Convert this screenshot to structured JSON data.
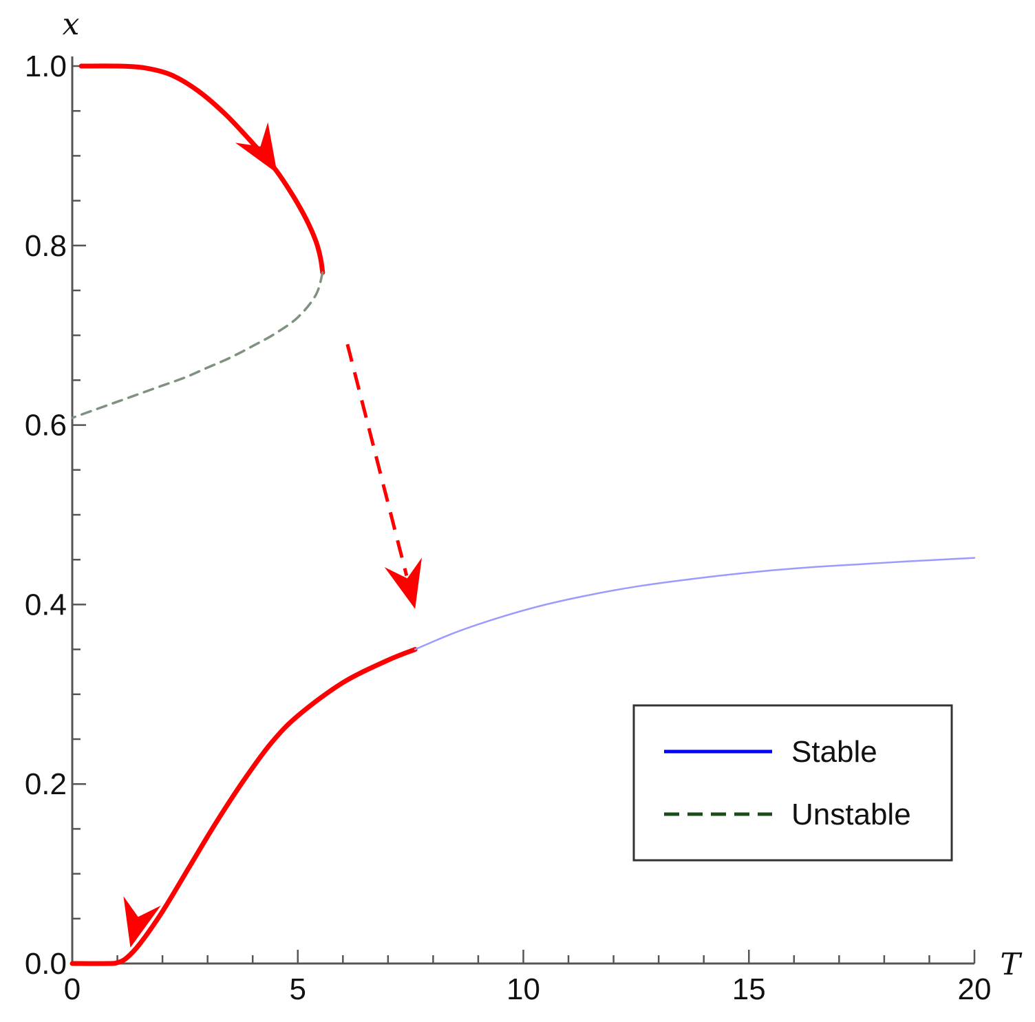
{
  "chart_data": {
    "type": "line",
    "title": "",
    "xlabel": "T",
    "ylabel": "x",
    "xlim": [
      0,
      20
    ],
    "ylim": [
      0,
      1.0
    ],
    "grid": false,
    "x_ticks": [
      0,
      5,
      10,
      15,
      20
    ],
    "x_tick_labels": [
      "0",
      "5",
      "10",
      "15",
      "20"
    ],
    "y_ticks": [
      0.0,
      0.2,
      0.4,
      0.6,
      0.8,
      1.0
    ],
    "y_tick_labels": [
      "0.0",
      "0.2",
      "0.4",
      "0.6",
      "0.8",
      "1.0"
    ],
    "x_minor_step": 1,
    "y_minor_step": 0.05,
    "legend": {
      "position": "bottom-right",
      "entries": [
        {
          "label": "Stable",
          "color": "#0000ff",
          "style": "solid"
        },
        {
          "label": "Unstable",
          "color": "#1b4d1b",
          "style": "dashed"
        }
      ]
    },
    "series": [
      {
        "key": "upper-stable",
        "style": "solid",
        "color": "#ff0000",
        "x": [
          0.2,
          1.0,
          1.6,
          2.2,
          2.8,
          3.4,
          4.0,
          4.5,
          4.9,
          5.2,
          5.4,
          5.5,
          5.55
        ],
        "y": [
          1.0,
          1.0,
          0.998,
          0.99,
          0.972,
          0.946,
          0.914,
          0.885,
          0.855,
          0.828,
          0.805,
          0.787,
          0.77
        ]
      },
      {
        "key": "unstable",
        "style": "dashed",
        "color": "#7f917f",
        "x": [
          5.55,
          5.4,
          5.0,
          4.5,
          4.0,
          3.5,
          3.0,
          2.5,
          2.0,
          1.5,
          1.0,
          0.5,
          0.0
        ],
        "y": [
          0.77,
          0.745,
          0.72,
          0.702,
          0.688,
          0.675,
          0.664,
          0.653,
          0.644,
          0.635,
          0.626,
          0.617,
          0.608
        ]
      },
      {
        "key": "lower-stable-traversed",
        "style": "solid",
        "color": "#ff0000",
        "x": [
          7.6,
          7.0,
          6.0,
          5.0,
          4.4,
          3.8,
          3.2,
          2.6,
          2.0,
          1.5,
          1.2,
          1.0,
          0.8,
          0.0
        ],
        "y": [
          0.35,
          0.338,
          0.313,
          0.276,
          0.245,
          0.204,
          0.158,
          0.108,
          0.058,
          0.022,
          0.006,
          0.001,
          0.0,
          0.0
        ]
      },
      {
        "key": "lower-stable",
        "style": "solid",
        "color": "#9a9aff",
        "x": [
          7.6,
          8.5,
          9.5,
          10.5,
          11.5,
          12.5,
          13.5,
          14.5,
          15.5,
          16.5,
          17.5,
          18.5,
          20.0
        ],
        "y": [
          0.35,
          0.369,
          0.386,
          0.4,
          0.411,
          0.42,
          0.427,
          0.433,
          0.438,
          0.442,
          0.445,
          0.448,
          0.452
        ]
      }
    ],
    "annotations": [
      {
        "key": "arrow-down-upper",
        "type": "arrowhead",
        "at": [
          4.3,
          0.9
        ],
        "toward": [
          4.7,
          0.868
        ],
        "color": "#ff0000"
      },
      {
        "key": "arrow-jump",
        "type": "dashed-arrow",
        "from": [
          6.1,
          0.69
        ],
        "to": [
          7.6,
          0.395
        ],
        "color": "#ff0000"
      },
      {
        "key": "arrow-down-lower",
        "type": "arrowhead",
        "at": [
          1.4,
          0.04
        ],
        "toward": [
          1.25,
          0.01
        ],
        "color": "#ff0000"
      }
    ]
  }
}
